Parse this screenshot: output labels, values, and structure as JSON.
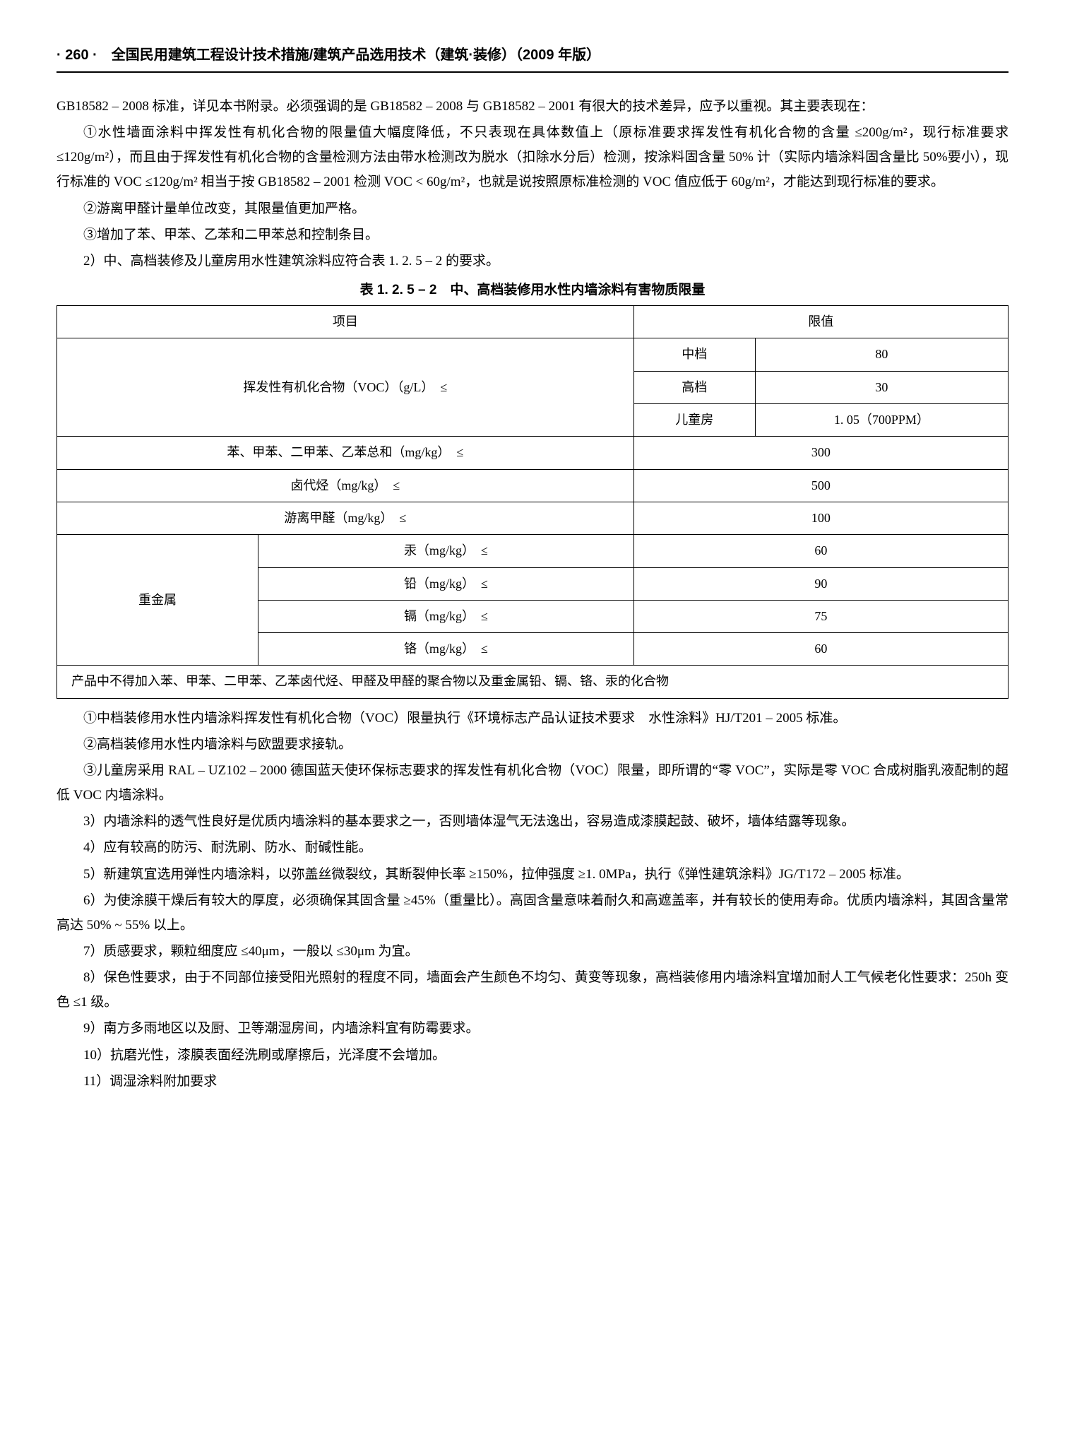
{
  "header": "· 260 ·　全国民用建筑工程设计技术措施/建筑产品选用技术（建筑·装修）（2009 年版）",
  "p1": "GB18582 – 2008 标准，详见本书附录。必须强调的是 GB18582 – 2008 与 GB18582 – 2001 有很大的技术差异，应予以重视。其主要表现在：",
  "p2": "①水性墙面涂料中挥发性有机化合物的限量值大幅度降低，不只表现在具体数值上（原标准要求挥发性有机化合物的含量 ≤200g/m²，现行标准要求 ≤120g/m²），而且由于挥发性有机化合物的含量检测方法由带水检测改为脱水（扣除水分后）检测，按涂料固含量 50% 计（实际内墙涂料固含量比 50%要小），现行标准的 VOC ≤120g/m² 相当于按 GB18582 – 2001 检测 VOC < 60g/m²，也就是说按照原标准检测的 VOC 值应低于 60g/m²，才能达到现行标准的要求。",
  "p3": "②游离甲醛计量单位改变，其限量值更加严格。",
  "p4": "③增加了苯、甲苯、乙苯和二甲苯总和控制条目。",
  "p5": "2）中、高档装修及儿童房用水性建筑涂料应符合表 1. 2. 5 – 2 的要求。",
  "table_title": "表 1. 2. 5 – 2　中、高档装修用水性内墙涂料有害物质限量",
  "table": {
    "h1": "项目",
    "h2": "限值",
    "voc_label": "挥发性有机化合物（VOC）（g/L）　≤",
    "voc_rows": [
      {
        "grade": "中档",
        "val": "80"
      },
      {
        "grade": "高档",
        "val": "30"
      },
      {
        "grade": "儿童房",
        "val": "1. 05（700PPM）"
      }
    ],
    "rows": [
      {
        "label": "苯、甲苯、二甲苯、乙苯总和（mg/kg）　≤",
        "val": "300"
      },
      {
        "label": "卤代烃（mg/kg）　≤",
        "val": "500"
      },
      {
        "label": "游离甲醛（mg/kg）　≤",
        "val": "100"
      }
    ],
    "metal_label": "重金属",
    "metal_rows": [
      {
        "label": "汞（mg/kg）　≤",
        "val": "60"
      },
      {
        "label": "铅（mg/kg）　≤",
        "val": "90"
      },
      {
        "label": "镉（mg/kg）　≤",
        "val": "75"
      },
      {
        "label": "铬（mg/kg）　≤",
        "val": "60"
      }
    ],
    "footnote": "产品中不得加入苯、甲苯、二甲苯、乙苯卤代烃、甲醛及甲醛的聚合物以及重金属铅、镉、铬、汞的化合物"
  },
  "p6": "①中档装修用水性内墙涂料挥发性有机化合物（VOC）限量执行《环境标志产品认证技术要求　水性涂料》HJ/T201 – 2005 标准。",
  "p7": "②高档装修用水性内墙涂料与欧盟要求接轨。",
  "p8": "③儿童房采用 RAL – UZ102 – 2000 德国蓝天使环保标志要求的挥发性有机化合物（VOC）限量，即所谓的“零 VOC”，实际是零 VOC 合成树脂乳液配制的超低 VOC 内墙涂料。",
  "p9": "3）内墙涂料的透气性良好是优质内墙涂料的基本要求之一，否则墙体湿气无法逸出，容易造成漆膜起鼓、破坏，墙体结露等现象。",
  "p10": "4）应有较高的防污、耐洗刷、防水、耐碱性能。",
  "p11": "5）新建筑宜选用弹性内墙涂料，以弥盖丝微裂纹，其断裂伸长率 ≥150%，拉伸强度 ≥1. 0MPa，执行《弹性建筑涂料》JG/T172 – 2005 标准。",
  "p12": "6）为使涂膜干燥后有较大的厚度，必须确保其固含量 ≥45%（重量比）。高固含量意味着耐久和高遮盖率，并有较长的使用寿命。优质内墙涂料，其固含量常高达 50% ~ 55% 以上。",
  "p13": "7）质感要求，颗粒细度应 ≤40μm，一般以 ≤30μm 为宜。",
  "p14": "8）保色性要求，由于不同部位接受阳光照射的程度不同，墙面会产生颜色不均匀、黄变等现象，高档装修用内墙涂料宜增加耐人工气候老化性要求：250h 变色 ≤1 级。",
  "p15": "9）南方多雨地区以及厨、卫等潮湿房间，内墙涂料宜有防霉要求。",
  "p16": "10）抗磨光性，漆膜表面经洗刷或摩擦后，光泽度不会增加。",
  "p17": "11）调湿涂料附加要求"
}
